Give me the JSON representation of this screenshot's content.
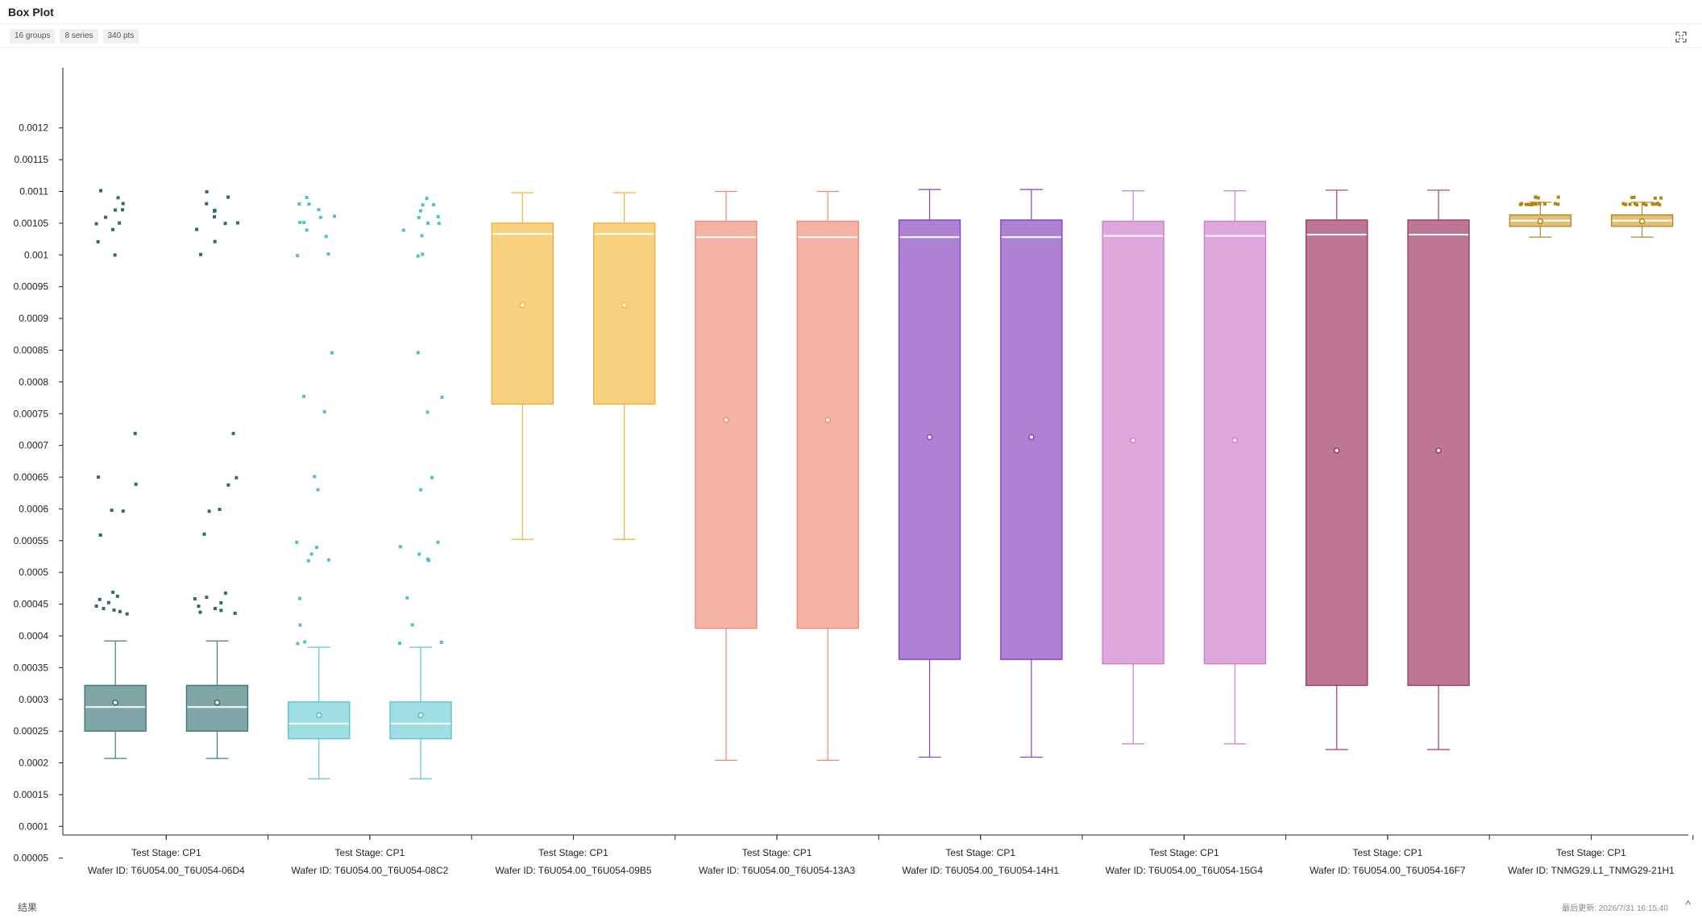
{
  "header": {
    "title": "Box Plot"
  },
  "chips": [
    "16 groups",
    "8 series",
    "340 pts"
  ],
  "footer": {
    "label": "结果",
    "updated": "最后更新: 2026/7/31 16:15:40",
    "collapse_glyph": "^"
  },
  "icons": {
    "expand": "expand-icon",
    "collapse": "chevron-up-icon"
  },
  "chart_data": {
    "type": "box",
    "ylim": [
      5e-05,
      0.00125
    ],
    "yticks": [
      "0.00005",
      "0.0001",
      "0.00015",
      "0.0002",
      "0.00025",
      "0.0003",
      "0.00035",
      "0.0004",
      "0.00045",
      "0.0005",
      "0.00055",
      "0.0006",
      "0.00065",
      "0.0007",
      "0.00075",
      "0.0008",
      "0.00085",
      "0.0009",
      "0.00095",
      "0.001",
      "0.00105",
      "0.0011",
      "0.00115",
      "0.0012"
    ],
    "category_labels": [
      [
        "Test Stage: CP1",
        "Wafer ID: T6U054.00_T6U054-06D4"
      ],
      [
        "Test Stage: CP1",
        "Wafer ID: T6U054.00_T6U054-08C2"
      ],
      [
        "Test Stage: CP1",
        "Wafer ID: T6U054.00_T6U054-09B5"
      ],
      [
        "Test Stage: CP1",
        "Wafer ID: T6U054.00_T6U054-13A3"
      ],
      [
        "Test Stage: CP1",
        "Wafer ID: T6U054.00_T6U054-14H1"
      ],
      [
        "Test Stage: CP1",
        "Wafer ID: T6U054.00_T6U054-15G4"
      ],
      [
        "Test Stage: CP1",
        "Wafer ID: T6U054.00_T6U054-16F7"
      ],
      [
        "Test Stage: CP1",
        "Wafer ID: TNMG29.L1_TNMG29-21H1"
      ]
    ],
    "grid": false,
    "legend": "none",
    "series": [
      {
        "color": "#2f6b6b",
        "fill": "#7fa5a6",
        "stroke": "#3f7a7b",
        "boxes": [
          {
            "min": 0.000207,
            "q1": 0.00025,
            "median": 0.000288,
            "q3": 0.000322,
            "max": 0.000392,
            "mean": 0.000295
          },
          {
            "min": 0.000207,
            "q1": 0.00025,
            "median": 0.000288,
            "q3": 0.000322,
            "max": 0.000392,
            "mean": 0.000295
          }
        ],
        "outliers": [
          0.001,
          0.00102,
          0.00104,
          0.00105,
          0.00105,
          0.00106,
          0.00107,
          0.00107,
          0.00108,
          0.00109,
          0.0011,
          0.00072,
          0.00065,
          0.000638,
          0.000598,
          0.000596,
          0.00056,
          0.000468,
          0.000462,
          0.000458,
          0.000452,
          0.000448,
          0.000444,
          0.00044,
          0.000438,
          0.000435
        ]
      },
      {
        "color": "#4cc3cc",
        "fill": "#9fdfe3",
        "stroke": "#5bc7cf",
        "boxes": [
          {
            "min": 0.000175,
            "q1": 0.000238,
            "median": 0.000262,
            "q3": 0.000296,
            "max": 0.000382,
            "mean": 0.000275
          },
          {
            "min": 0.000175,
            "q1": 0.000238,
            "median": 0.000262,
            "q3": 0.000296,
            "max": 0.000382,
            "mean": 0.000275
          }
        ],
        "outliers": [
          0.000998,
          0.001002,
          0.00103,
          0.00104,
          0.00105,
          0.00105,
          0.00106,
          0.00106,
          0.00107,
          0.00108,
          0.00108,
          0.00109,
          0.000845,
          0.000776,
          0.000752,
          0.00065,
          0.00063,
          0.000548,
          0.00054,
          0.00053,
          0.00052,
          0.000518,
          0.00046,
          0.000416,
          0.00039,
          0.000388
        ]
      },
      {
        "color": "#f2b84b",
        "fill": "#f7d17f",
        "stroke": "#f0b23e",
        "boxes": [
          {
            "min": 0.000552,
            "q1": 0.000765,
            "median": 0.001033,
            "q3": 0.00105,
            "max": 0.001098,
            "mean": 0.000921
          },
          {
            "min": 0.000552,
            "q1": 0.000765,
            "median": 0.001033,
            "q3": 0.00105,
            "max": 0.001098,
            "mean": 0.000921
          }
        ],
        "outliers": []
      },
      {
        "color": "#ef8f7d",
        "fill": "#f5b3a5",
        "stroke": "#ee8a76",
        "boxes": [
          {
            "min": 0.000204,
            "q1": 0.000412,
            "median": 0.001028,
            "q3": 0.001053,
            "max": 0.0011,
            "mean": 0.00074
          },
          {
            "min": 0.000204,
            "q1": 0.000412,
            "median": 0.001028,
            "q3": 0.001053,
            "max": 0.0011,
            "mean": 0.00074
          }
        ],
        "outliers": []
      },
      {
        "color": "#8a3fc4",
        "fill": "#ae82d3",
        "stroke": "#8740c2",
        "boxes": [
          {
            "min": 0.000209,
            "q1": 0.000363,
            "median": 0.001028,
            "q3": 0.001055,
            "max": 0.001103,
            "mean": 0.000713
          },
          {
            "min": 0.000209,
            "q1": 0.000363,
            "median": 0.001028,
            "q3": 0.001055,
            "max": 0.001103,
            "mean": 0.000713
          }
        ],
        "outliers": []
      },
      {
        "color": "#d47ad3",
        "fill": "#dea8dc",
        "stroke": "#d07ccf",
        "boxes": [
          {
            "min": 0.00023,
            "q1": 0.000356,
            "median": 0.00103,
            "q3": 0.001053,
            "max": 0.001101,
            "mean": 0.000708
          },
          {
            "min": 0.00023,
            "q1": 0.000356,
            "median": 0.00103,
            "q3": 0.001053,
            "max": 0.001101,
            "mean": 0.000708
          }
        ],
        "outliers": []
      },
      {
        "color": "#9e3561",
        "fill": "#be7793",
        "stroke": "#a03a66",
        "boxes": [
          {
            "min": 0.000221,
            "q1": 0.000322,
            "median": 0.001032,
            "q3": 0.001055,
            "max": 0.001102,
            "mean": 0.000692
          },
          {
            "min": 0.000221,
            "q1": 0.000322,
            "median": 0.001032,
            "q3": 0.001055,
            "max": 0.001102,
            "mean": 0.000692
          }
        ],
        "outliers": []
      },
      {
        "color": "#b58315",
        "fill": "#e0c07a",
        "stroke": "#b88a1e",
        "boxes": [
          {
            "min": 0.001028,
            "q1": 0.001045,
            "median": 0.001054,
            "q3": 0.001063,
            "max": 0.001083,
            "mean": 0.001053
          },
          {
            "min": 0.001028,
            "q1": 0.001045,
            "median": 0.001054,
            "q3": 0.001063,
            "max": 0.001083,
            "mean": 0.001053
          }
        ],
        "outliers": [
          0.00108,
          0.00108,
          0.00108,
          0.00108,
          0.00108,
          0.00108,
          0.00108,
          0.00108,
          0.00108,
          0.00108,
          0.00108,
          0.00108,
          0.00109,
          0.00109,
          0.00109,
          0.00109
        ]
      }
    ]
  }
}
